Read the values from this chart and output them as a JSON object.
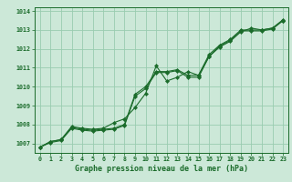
{
  "title": "Graphe pression niveau de la mer (hPa)",
  "background_color": "#cce8d8",
  "grid_color": "#99ccb0",
  "line_color": "#1a6b2a",
  "marker_color": "#1a6b2a",
  "xlim": [
    -0.5,
    23.5
  ],
  "ylim": [
    1006.5,
    1014.2
  ],
  "xticks": [
    0,
    1,
    2,
    3,
    4,
    5,
    6,
    7,
    8,
    9,
    10,
    11,
    12,
    13,
    14,
    15,
    16,
    17,
    18,
    19,
    20,
    21,
    22,
    23
  ],
  "yticks": [
    1007,
    1008,
    1009,
    1010,
    1011,
    1012,
    1013,
    1014
  ],
  "series1": [
    [
      0,
      1006.8
    ],
    [
      1,
      1007.1
    ],
    [
      2,
      1007.2
    ],
    [
      3,
      1007.9
    ],
    [
      4,
      1007.8
    ],
    [
      5,
      1007.75
    ],
    [
      6,
      1007.8
    ],
    [
      7,
      1008.1
    ],
    [
      8,
      1008.3
    ],
    [
      9,
      1008.9
    ],
    [
      10,
      1009.65
    ],
    [
      11,
      1011.1
    ],
    [
      12,
      1010.3
    ],
    [
      13,
      1010.5
    ],
    [
      14,
      1010.8
    ],
    [
      15,
      1010.6
    ],
    [
      16,
      1011.6
    ],
    [
      17,
      1012.1
    ],
    [
      18,
      1012.4
    ],
    [
      19,
      1012.9
    ],
    [
      20,
      1013.1
    ],
    [
      21,
      1013.0
    ],
    [
      22,
      1013.1
    ],
    [
      23,
      1013.5
    ]
  ],
  "series2": [
    [
      0,
      1006.8
    ],
    [
      1,
      1007.1
    ],
    [
      2,
      1007.2
    ],
    [
      3,
      1007.85
    ],
    [
      4,
      1007.75
    ],
    [
      5,
      1007.7
    ],
    [
      6,
      1007.75
    ],
    [
      7,
      1007.8
    ],
    [
      8,
      1008.0
    ],
    [
      9,
      1009.6
    ],
    [
      10,
      1010.0
    ],
    [
      11,
      1010.8
    ],
    [
      12,
      1010.8
    ],
    [
      13,
      1010.9
    ],
    [
      14,
      1010.6
    ],
    [
      15,
      1010.6
    ],
    [
      16,
      1011.7
    ],
    [
      17,
      1012.2
    ],
    [
      18,
      1012.5
    ],
    [
      19,
      1013.0
    ],
    [
      20,
      1013.0
    ],
    [
      21,
      1013.0
    ],
    [
      22,
      1013.1
    ],
    [
      23,
      1013.55
    ]
  ],
  "series3": [
    [
      0,
      1006.8
    ],
    [
      1,
      1007.05
    ],
    [
      2,
      1007.15
    ],
    [
      3,
      1007.8
    ],
    [
      4,
      1007.7
    ],
    [
      5,
      1007.65
    ],
    [
      6,
      1007.7
    ],
    [
      7,
      1007.75
    ],
    [
      8,
      1007.95
    ],
    [
      9,
      1009.5
    ],
    [
      10,
      1009.9
    ],
    [
      11,
      1010.75
    ],
    [
      12,
      1010.75
    ],
    [
      13,
      1010.85
    ],
    [
      14,
      1010.5
    ],
    [
      15,
      1010.5
    ],
    [
      16,
      1011.6
    ],
    [
      17,
      1012.15
    ],
    [
      18,
      1012.45
    ],
    [
      19,
      1012.95
    ],
    [
      20,
      1012.95
    ],
    [
      21,
      1012.95
    ],
    [
      22,
      1013.05
    ],
    [
      23,
      1013.5
    ]
  ]
}
